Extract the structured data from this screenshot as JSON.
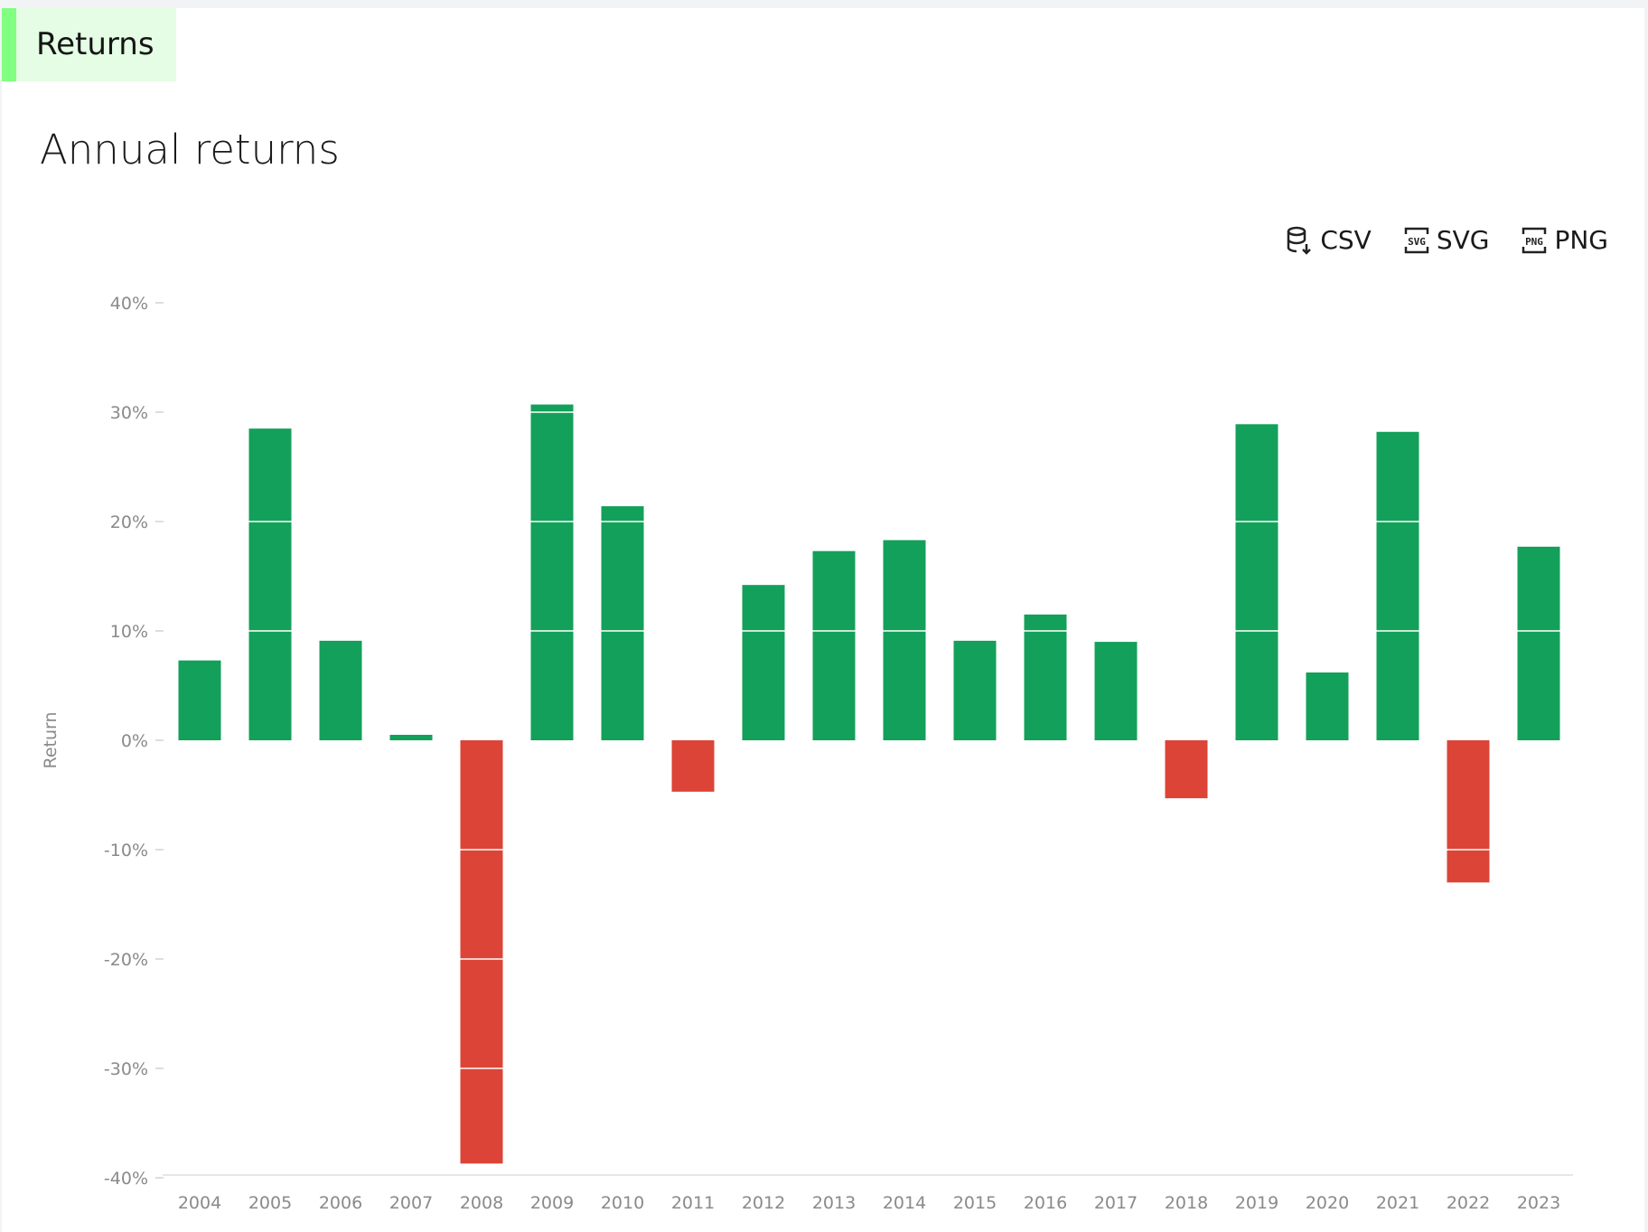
{
  "tab": {
    "label": "Returns"
  },
  "title": "Annual returns",
  "exports": [
    {
      "label": "CSV",
      "icon": "database-download-icon"
    },
    {
      "label": "SVG",
      "icon": "svg-file-icon"
    },
    {
      "label": "PNG",
      "icon": "png-file-icon"
    }
  ],
  "chart_data": {
    "type": "bar",
    "title": "",
    "xlabel": "",
    "ylabel": "Return",
    "ylim": [
      -40,
      40
    ],
    "yticks": [
      40,
      30,
      20,
      10,
      0,
      -10,
      -20,
      -30,
      -40
    ],
    "ytick_labels": [
      "40%",
      "30%",
      "20%",
      "10%",
      "0%",
      "-10%",
      "-20%",
      "-30%",
      "-40%"
    ],
    "categories": [
      "2004",
      "2005",
      "2006",
      "2007",
      "2008",
      "2009",
      "2010",
      "2011",
      "2012",
      "2013",
      "2014",
      "2015",
      "2016",
      "2017",
      "2018",
      "2019",
      "2020",
      "2021",
      "2022",
      "2023"
    ],
    "values": [
      7.3,
      28.5,
      9.1,
      0.5,
      -38.7,
      30.7,
      21.4,
      -4.7,
      14.2,
      17.3,
      18.3,
      9.1,
      11.5,
      9.0,
      -5.3,
      28.9,
      6.2,
      28.2,
      -13.0,
      17.7
    ],
    "positive_color": "#13a05a",
    "negative_color": "#dc4437",
    "grid": false
  }
}
